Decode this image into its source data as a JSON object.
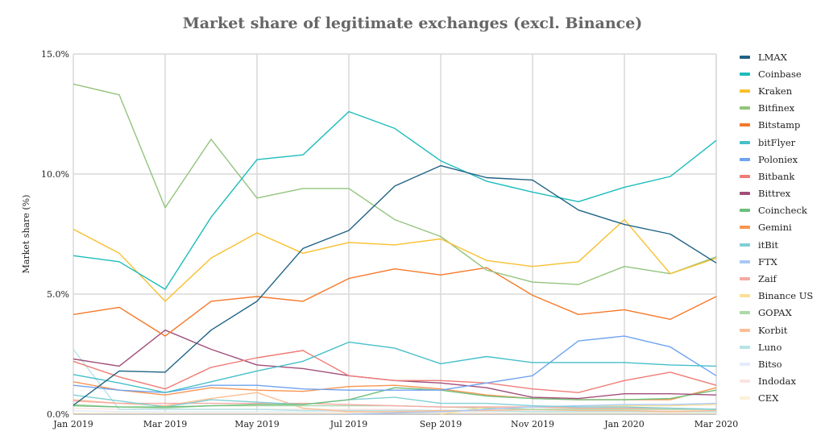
{
  "chart_data": {
    "type": "line",
    "title": "Market share of legitimate exchanges (excl. Binance)",
    "xlabel": "",
    "ylabel": "Market share (%)",
    "ylim": [
      0,
      15
    ],
    "yticks": [
      "0.0%",
      "5.0%",
      "10.0%",
      "15.0%"
    ],
    "ytick_values": [
      0,
      5,
      10,
      15
    ],
    "x": [
      "Jan 2019",
      "Feb 2019",
      "Mar 2019",
      "Apr 2019",
      "May 2019",
      "Jun 2019",
      "Jul 2019",
      "Aug 2019",
      "Sep 2019",
      "Oct 2019",
      "Nov 2019",
      "Dec 2019",
      "Jan 2020",
      "Feb 2020",
      "Mar 2020"
    ],
    "xtick_labels": [
      "Jan 2019",
      "Mar 2019",
      "May 2019",
      "Jul 2019",
      "Sep 2019",
      "Nov 2019",
      "Jan 2020",
      "Mar 2020"
    ],
    "grid": true,
    "legend_position": "right",
    "series": [
      {
        "name": "LMAX",
        "color": "#1f6384",
        "values": [
          0.37,
          1.8,
          1.75,
          3.5,
          4.7,
          6.9,
          7.65,
          9.5,
          10.35,
          9.85,
          9.75,
          8.5,
          7.9,
          7.5,
          6.3
        ]
      },
      {
        "name": "Coinbase",
        "color": "#1cbcbc",
        "values": [
          6.6,
          6.35,
          5.2,
          8.2,
          10.6,
          10.8,
          12.6,
          11.9,
          10.55,
          9.7,
          9.25,
          8.85,
          9.45,
          9.9,
          11.4
        ]
      },
      {
        "name": "Kraken",
        "color": "#f7c02e",
        "values": [
          7.7,
          6.7,
          4.7,
          6.5,
          7.55,
          6.7,
          7.15,
          7.05,
          7.3,
          6.4,
          6.15,
          6.35,
          8.1,
          5.85,
          6.5
        ]
      },
      {
        "name": "Bitfinex",
        "color": "#93c47d",
        "values": [
          13.75,
          13.3,
          8.6,
          11.45,
          9.0,
          9.4,
          9.4,
          8.1,
          7.4,
          6.0,
          5.5,
          5.4,
          6.15,
          5.85,
          6.55
        ]
      },
      {
        "name": "Bitstamp",
        "color": "#f5792a",
        "values": [
          4.15,
          4.45,
          3.25,
          4.7,
          4.9,
          4.7,
          5.65,
          6.05,
          5.8,
          6.1,
          4.95,
          4.15,
          4.35,
          3.95,
          4.9
        ]
      },
      {
        "name": "bitFlyer",
        "color": "#46bfca",
        "values": [
          1.65,
          1.3,
          0.9,
          1.35,
          1.8,
          2.2,
          3.0,
          2.75,
          2.1,
          2.4,
          2.15,
          2.15,
          2.15,
          2.05,
          2.0
        ]
      },
      {
        "name": "Poloniex",
        "color": "#6fa3ef",
        "values": [
          1.2,
          1.0,
          0.9,
          1.2,
          1.2,
          1.05,
          1.0,
          1.0,
          1.0,
          1.3,
          1.6,
          3.05,
          3.25,
          2.8,
          1.6
        ]
      },
      {
        "name": "Bitbank",
        "color": "#ef7c76",
        "values": [
          2.2,
          1.55,
          1.05,
          1.95,
          2.35,
          2.65,
          1.6,
          1.4,
          1.4,
          1.3,
          1.05,
          0.9,
          1.4,
          1.75,
          1.2
        ]
      },
      {
        "name": "Bittrex",
        "color": "#a24e7a",
        "values": [
          2.3,
          2.0,
          3.5,
          2.7,
          2.05,
          1.9,
          1.6,
          1.4,
          1.3,
          1.1,
          0.7,
          0.65,
          0.85,
          0.85,
          0.8
        ]
      },
      {
        "name": "Coincheck",
        "color": "#6dbf7b",
        "values": [
          0.35,
          0.3,
          0.3,
          0.35,
          0.4,
          0.4,
          0.6,
          1.1,
          1.0,
          0.75,
          0.65,
          0.6,
          0.6,
          0.65,
          1.0
        ]
      },
      {
        "name": "Gemini",
        "color": "#f99550",
        "values": [
          1.35,
          1.0,
          0.8,
          1.1,
          1.0,
          0.95,
          1.15,
          1.2,
          1.05,
          0.8,
          0.65,
          0.6,
          0.6,
          0.6,
          1.1
        ]
      },
      {
        "name": "itBit",
        "color": "#7fd0d6",
        "values": [
          0.8,
          0.55,
          0.3,
          0.6,
          0.5,
          0.4,
          0.6,
          0.7,
          0.45,
          0.45,
          0.35,
          0.3,
          0.3,
          0.25,
          0.2
        ]
      },
      {
        "name": "FTX",
        "color": "#a9c8f5",
        "values": [
          null,
          null,
          null,
          null,
          null,
          null,
          0.0,
          0.05,
          0.1,
          0.2,
          0.3,
          0.35,
          0.4,
          0.4,
          0.45
        ]
      },
      {
        "name": "Zaif",
        "color": "#f5aaa5",
        "values": [
          0.55,
          0.45,
          0.45,
          0.45,
          0.45,
          0.45,
          0.4,
          0.35,
          0.3,
          0.3,
          0.3,
          0.25,
          0.25,
          0.25,
          0.2
        ]
      },
      {
        "name": "Binance US",
        "color": "#fbdf94",
        "values": [
          null,
          null,
          null,
          null,
          null,
          null,
          null,
          null,
          0.0,
          0.3,
          0.3,
          0.3,
          0.35,
          0.35,
          0.4
        ]
      },
      {
        "name": "GOPAX",
        "color": "#add8a7",
        "values": [
          0.4,
          0.3,
          0.25,
          0.35,
          0.35,
          0.35,
          0.35,
          0.35,
          0.3,
          0.25,
          0.2,
          0.2,
          0.2,
          0.2,
          0.2
        ]
      },
      {
        "name": "Korbit",
        "color": "#fbbf94",
        "values": [
          0.6,
          0.45,
          0.35,
          0.65,
          0.9,
          0.25,
          0.1,
          0.1,
          0.15,
          0.15,
          0.2,
          0.15,
          0.15,
          0.1,
          0.15
        ]
      },
      {
        "name": "Luno",
        "color": "#b6e4e6",
        "values": [
          2.7,
          0.2,
          0.2,
          0.2,
          0.2,
          0.15,
          0.15,
          0.15,
          0.15,
          0.15,
          0.1,
          0.1,
          0.1,
          0.1,
          0.1
        ]
      },
      {
        "name": "Bitso",
        "color": "#e3ecfb",
        "values": [
          0.15,
          0.1,
          0.1,
          0.1,
          0.1,
          0.1,
          0.1,
          0.1,
          0.1,
          0.1,
          0.1,
          0.1,
          0.1,
          0.1,
          0.1
        ]
      },
      {
        "name": "Indodax",
        "color": "#fbe3e1",
        "values": [
          0.25,
          0.2,
          0.2,
          0.2,
          0.2,
          0.2,
          0.2,
          0.2,
          0.15,
          0.15,
          0.15,
          0.15,
          0.15,
          0.15,
          0.15
        ]
      },
      {
        "name": "CEX",
        "color": "#fdf1d8",
        "values": [
          0.05,
          0.05,
          0.05,
          0.05,
          0.05,
          0.05,
          0.05,
          0.05,
          0.05,
          0.05,
          0.05,
          0.05,
          0.05,
          0.05,
          0.05
        ]
      }
    ]
  }
}
